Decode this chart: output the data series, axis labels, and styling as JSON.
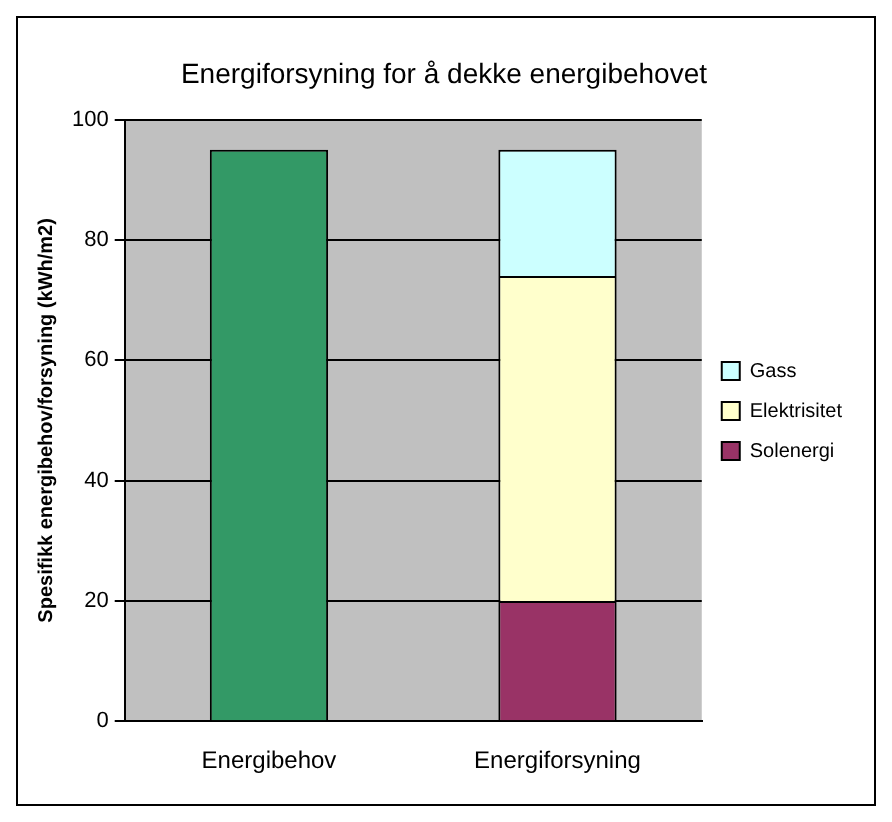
{
  "chart_data": {
    "type": "bar",
    "title": "Energiforsyning for å dekke energibehovet",
    "ylabel": "Spesifikk energibehov/forsyning (kWh/m2)",
    "categories": [
      "Energibehov",
      "Energiforsyning"
    ],
    "stacked": true,
    "series": [
      {
        "color": "#339966",
        "values": [
          95,
          null
        ]
      },
      {
        "name": "Solenergi",
        "color": "#993366",
        "values": [
          null,
          20
        ]
      },
      {
        "name": "Elektrisitet",
        "color": "#ffffcc",
        "values": [
          null,
          54
        ]
      },
      {
        "name": "Gass",
        "color": "#ccffff",
        "values": [
          null,
          21
        ]
      }
    ],
    "ylim": [
      0,
      100
    ],
    "yticks": [
      0,
      20,
      40,
      60,
      80,
      100
    ],
    "grid": "y",
    "legend": "right"
  }
}
